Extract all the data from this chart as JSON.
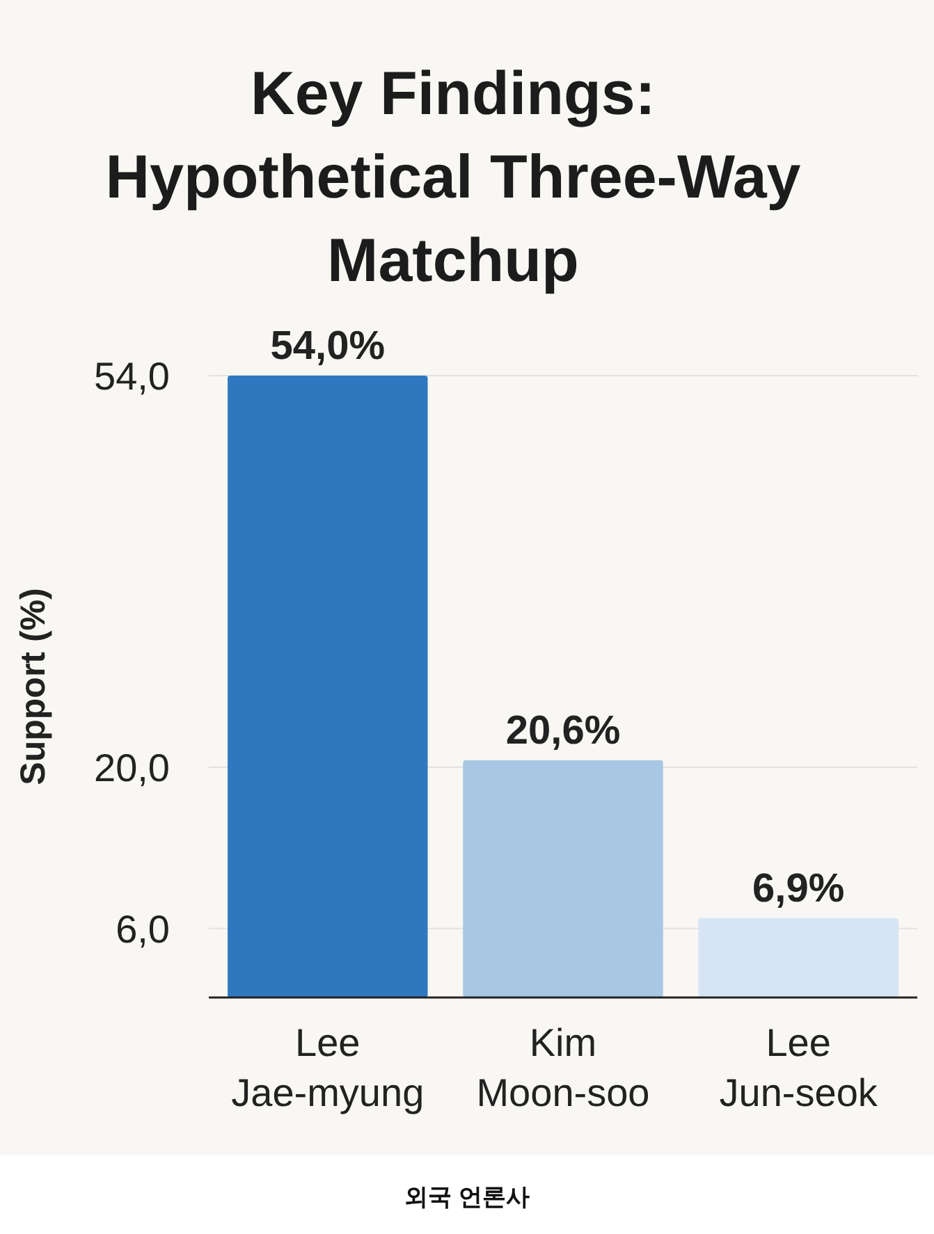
{
  "chart_data": {
    "type": "bar",
    "title": "Key Findings: Hypothetical Three-Way Matchup",
    "ylabel": "Support (%)",
    "categories": [
      "Lee Jae-myung",
      "Kim Moon-soo",
      "Lee Jun-seok"
    ],
    "values": [
      54.0,
      20.6,
      6.9
    ],
    "colors": [
      "#2f78bf",
      "#a7c7e2",
      "#d6e5f3"
    ],
    "value_labels": [
      "54,0%",
      "20,6%",
      "6,9%"
    ],
    "ylim": [
      0,
      54
    ],
    "yticks": [
      {
        "value": 6,
        "label": "6,0"
      },
      {
        "value": 20,
        "label": "20,0"
      },
      {
        "value": 54,
        "label": "54,0"
      }
    ],
    "grid": "y",
    "annotations": [
      "외국 언론사"
    ]
  }
}
